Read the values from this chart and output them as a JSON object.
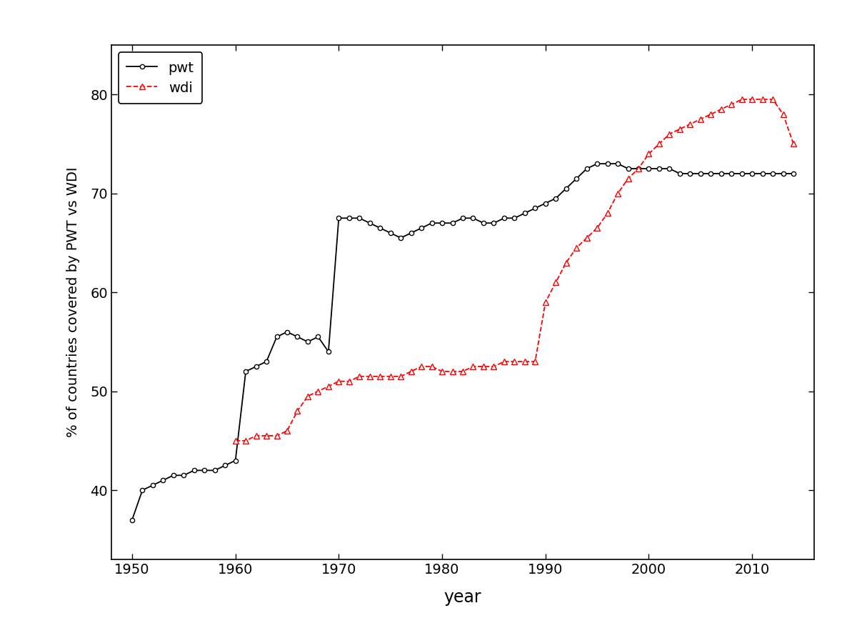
{
  "pwt_years": [
    1950,
    1951,
    1952,
    1953,
    1954,
    1955,
    1956,
    1957,
    1958,
    1959,
    1960,
    1961,
    1962,
    1963,
    1964,
    1965,
    1966,
    1967,
    1968,
    1969,
    1970,
    1971,
    1972,
    1973,
    1974,
    1975,
    1976,
    1977,
    1978,
    1979,
    1980,
    1981,
    1982,
    1983,
    1984,
    1985,
    1986,
    1987,
    1988,
    1989,
    1990,
    1991,
    1992,
    1993,
    1994,
    1995,
    1996,
    1997,
    1998,
    1999,
    2000,
    2001,
    2002,
    2003,
    2004,
    2005,
    2006,
    2007,
    2008,
    2009,
    2010,
    2011,
    2012,
    2013,
    2014
  ],
  "pwt_values": [
    37.0,
    40.0,
    40.5,
    41.0,
    41.5,
    41.5,
    42.0,
    42.0,
    42.0,
    42.5,
    43.0,
    52.0,
    52.5,
    53.0,
    55.5,
    56.0,
    55.5,
    55.0,
    55.5,
    54.0,
    67.5,
    67.5,
    67.5,
    67.0,
    66.5,
    66.0,
    65.5,
    66.0,
    66.5,
    67.0,
    67.0,
    67.0,
    67.5,
    67.5,
    67.0,
    67.0,
    67.5,
    67.5,
    68.0,
    68.5,
    69.0,
    69.5,
    70.5,
    71.5,
    72.5,
    73.0,
    73.0,
    73.0,
    72.5,
    72.5,
    72.5,
    72.5,
    72.5,
    72.0,
    72.0,
    72.0,
    72.0,
    72.0,
    72.0,
    72.0,
    72.0,
    72.0,
    72.0,
    72.0,
    72.0
  ],
  "wdi_years": [
    1960,
    1961,
    1962,
    1963,
    1964,
    1965,
    1966,
    1967,
    1968,
    1969,
    1970,
    1971,
    1972,
    1973,
    1974,
    1975,
    1976,
    1977,
    1978,
    1979,
    1980,
    1981,
    1982,
    1983,
    1984,
    1985,
    1986,
    1987,
    1988,
    1989,
    1990,
    1991,
    1992,
    1993,
    1994,
    1995,
    1996,
    1997,
    1998,
    1999,
    2000,
    2001,
    2002,
    2003,
    2004,
    2005,
    2006,
    2007,
    2008,
    2009,
    2010,
    2011,
    2012,
    2013,
    2014
  ],
  "wdi_values": [
    45.0,
    45.0,
    45.5,
    45.5,
    45.5,
    46.0,
    48.0,
    49.5,
    50.0,
    50.5,
    51.0,
    51.0,
    51.5,
    51.5,
    51.5,
    51.5,
    51.5,
    52.0,
    52.5,
    52.5,
    52.0,
    52.0,
    52.0,
    52.5,
    52.5,
    52.5,
    53.0,
    53.0,
    53.0,
    53.0,
    59.0,
    61.0,
    63.0,
    64.5,
    65.5,
    66.5,
    68.0,
    70.0,
    71.5,
    72.5,
    74.0,
    75.0,
    76.0,
    76.5,
    77.0,
    77.5,
    78.0,
    78.5,
    79.0,
    79.5,
    79.5,
    79.5,
    79.5,
    78.0,
    75.0
  ],
  "xlabel": "year",
  "ylabel": "% of countries covered by PWT vs WDI",
  "xlim": [
    1948,
    2016
  ],
  "ylim": [
    33,
    85
  ],
  "yticks": [
    40,
    50,
    60,
    70,
    80
  ],
  "xticks": [
    1950,
    1960,
    1970,
    1980,
    1990,
    2000,
    2010
  ],
  "background_color": "#ffffff",
  "pwt_color": "#000000",
  "wdi_color": "#ff0000",
  "legend_labels": [
    "pwt",
    "wdi"
  ]
}
